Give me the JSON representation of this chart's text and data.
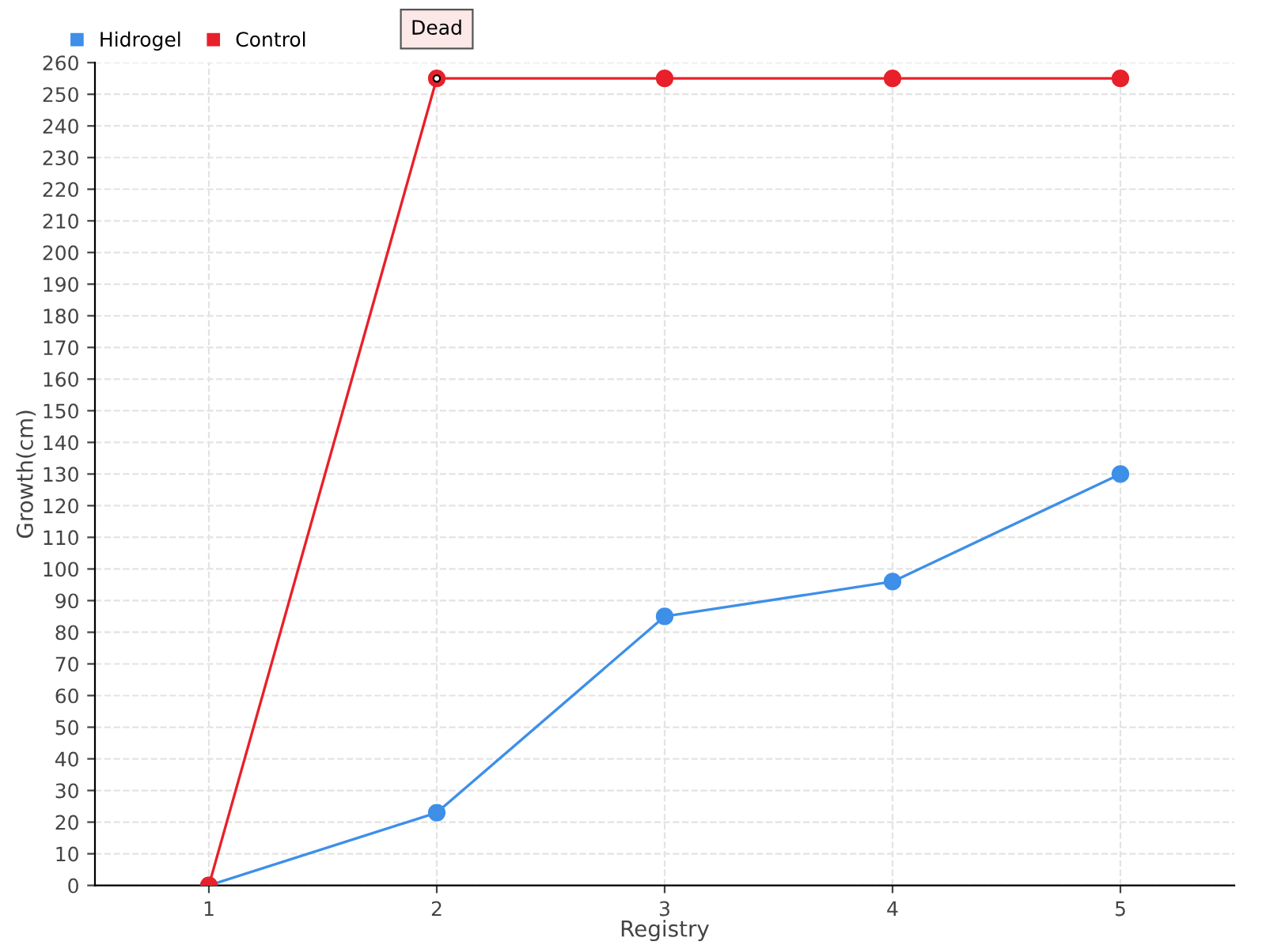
{
  "chart_data": {
    "type": "line",
    "xlabel": "Registry",
    "ylabel": "Growth(cm)",
    "categories": [
      "1",
      "2",
      "3",
      "4",
      "5"
    ],
    "series": [
      {
        "name": "Hidrogel",
        "color": "#3d8fe8",
        "values": [
          0,
          23,
          85,
          96,
          130
        ]
      },
      {
        "name": "Control",
        "color": "#e8202a",
        "values": [
          0,
          255,
          255,
          255,
          255
        ]
      }
    ],
    "annotations": [
      {
        "text": "Dead",
        "x": "2",
        "y": 255
      }
    ],
    "ylim": [
      0,
      260
    ],
    "yticks": [
      0,
      10,
      20,
      30,
      40,
      50,
      60,
      70,
      80,
      90,
      100,
      110,
      120,
      130,
      140,
      150,
      160,
      170,
      180,
      190,
      200,
      210,
      220,
      230,
      240,
      250,
      260
    ],
    "grid": true,
    "legend": "top left",
    "marker": "circle",
    "line_style": "solid"
  }
}
